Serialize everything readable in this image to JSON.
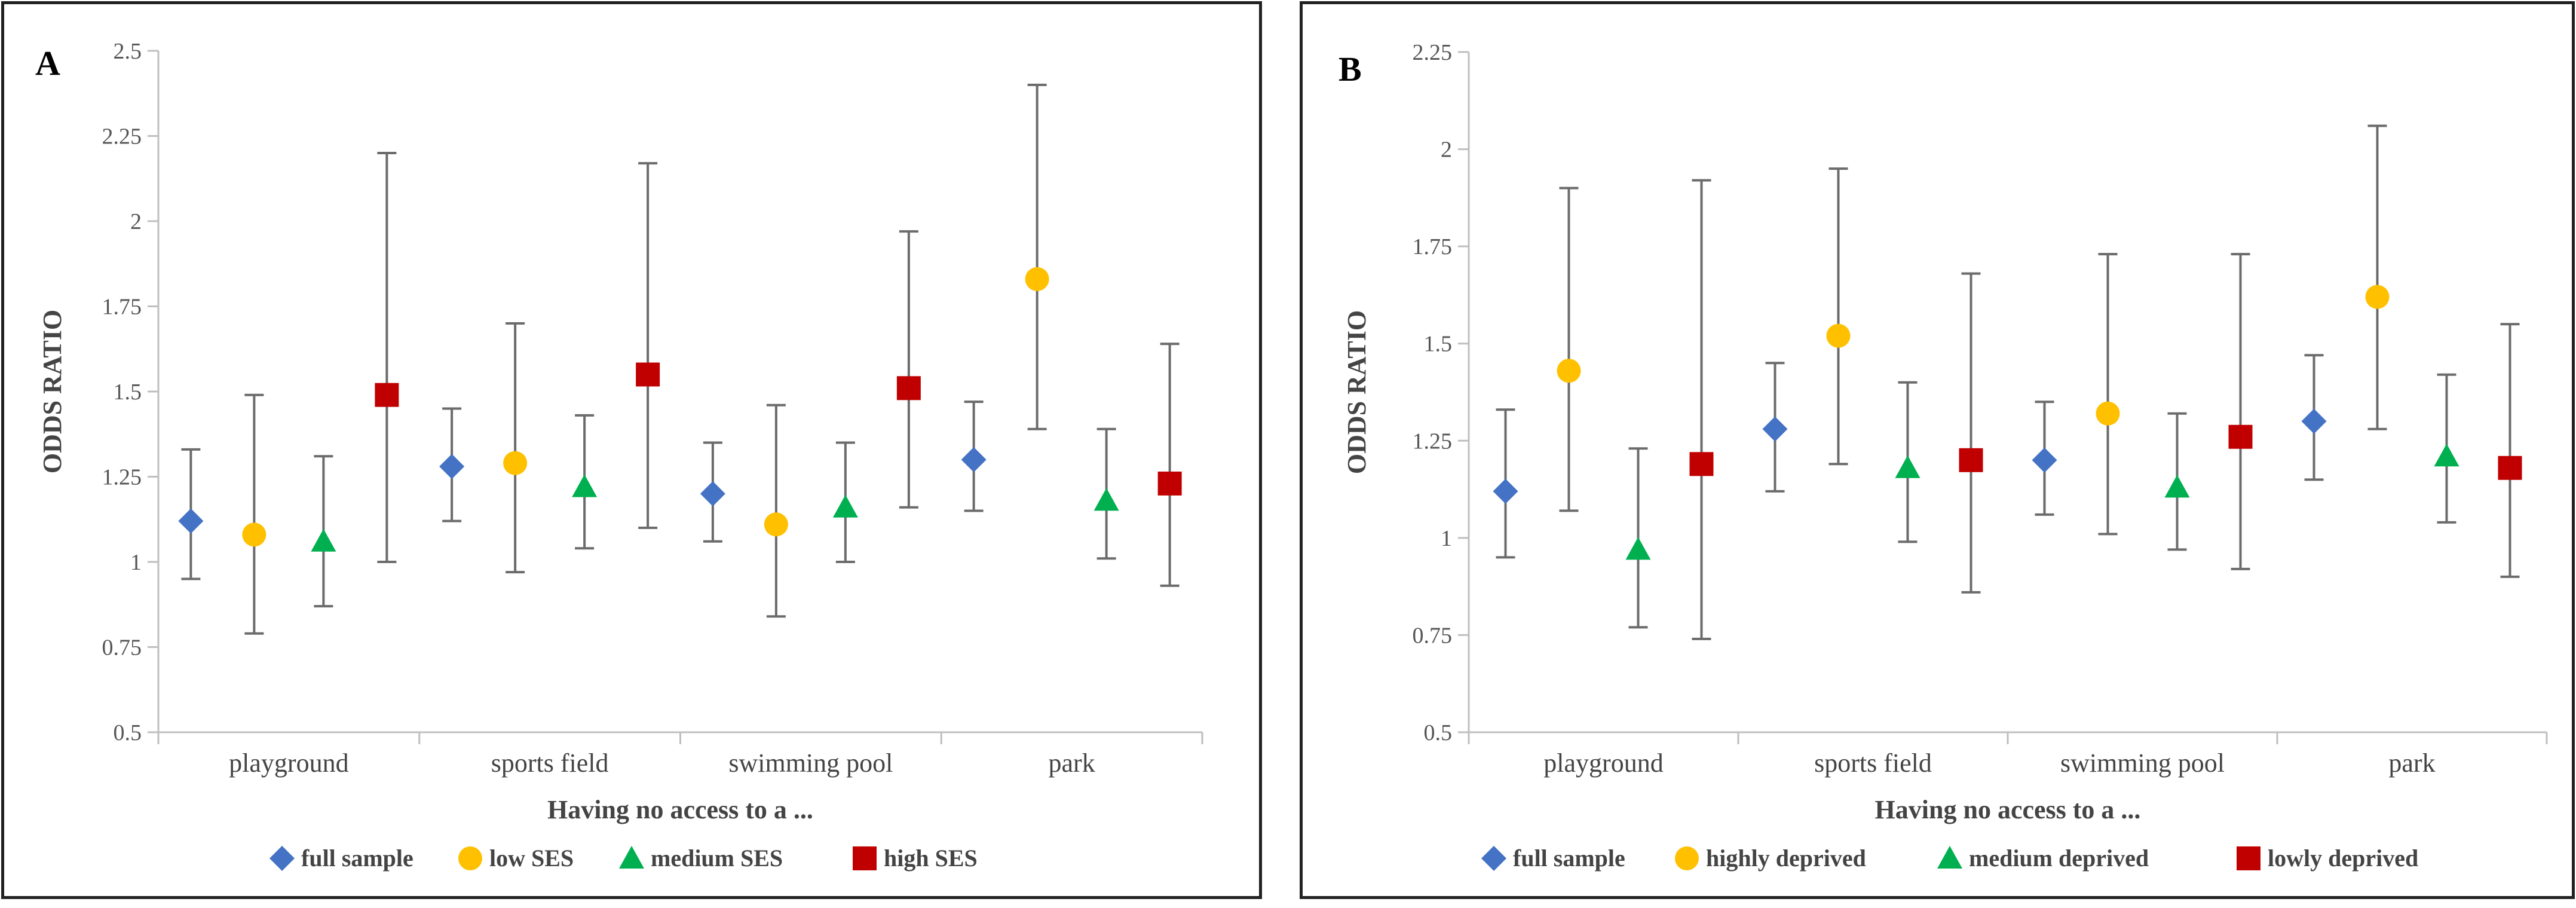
{
  "chart_data": [
    {
      "type": "scatter",
      "panel_label": "A",
      "title": "",
      "xlabel": "Having no access to a ...",
      "ylabel": "ODDS RATIO",
      "ylim": [
        0.5,
        2.5
      ],
      "yticks": [
        "0.5",
        "0.75",
        "1",
        "1.25",
        "1.5",
        "1.75",
        "2",
        "2.25",
        "2.5"
      ],
      "categories": [
        "playground",
        "sports field",
        "swimming pool",
        "park"
      ],
      "legend_position": "bottom",
      "series": [
        {
          "name": "full sample",
          "marker": "diamond",
          "color": "#4472C4",
          "values": [
            1.12,
            1.28,
            1.2,
            1.3
          ],
          "lower": [
            0.95,
            1.12,
            1.06,
            1.15
          ],
          "upper": [
            1.33,
            1.45,
            1.35,
            1.47
          ]
        },
        {
          "name": "low SES",
          "marker": "circle",
          "color": "#FFC000",
          "values": [
            1.08,
            1.29,
            1.11,
            1.83
          ],
          "lower": [
            0.79,
            0.97,
            0.84,
            1.39
          ],
          "upper": [
            1.49,
            1.7,
            1.46,
            2.4
          ]
        },
        {
          "name": "medium SES",
          "marker": "triangle",
          "color": "#00B050",
          "values": [
            1.06,
            1.22,
            1.16,
            1.18
          ],
          "lower": [
            0.87,
            1.04,
            1.0,
            1.01
          ],
          "upper": [
            1.31,
            1.43,
            1.35,
            1.39
          ]
        },
        {
          "name": "high SES",
          "marker": "square",
          "color": "#C00000",
          "values": [
            1.49,
            1.55,
            1.51,
            1.23
          ],
          "lower": [
            1.0,
            1.1,
            1.16,
            0.93
          ],
          "upper": [
            2.2,
            2.17,
            1.97,
            1.64
          ]
        }
      ]
    },
    {
      "type": "scatter",
      "panel_label": "B",
      "title": "",
      "xlabel": "Having no access to a ...",
      "ylabel": "ODDS RATIO",
      "ylim": [
        0.5,
        2.25
      ],
      "yticks": [
        "0.5",
        "0.75",
        "1",
        "1.25",
        "1.5",
        "1.75",
        "2",
        "2.25"
      ],
      "categories": [
        "playground",
        "sports field",
        "swimming pool",
        "park"
      ],
      "legend_position": "bottom",
      "series": [
        {
          "name": "full sample",
          "marker": "diamond",
          "color": "#4472C4",
          "values": [
            1.12,
            1.28,
            1.2,
            1.3
          ],
          "lower": [
            0.95,
            1.12,
            1.06,
            1.15
          ],
          "upper": [
            1.33,
            1.45,
            1.35,
            1.47
          ]
        },
        {
          "name": "highly deprived",
          "marker": "circle",
          "color": "#FFC000",
          "values": [
            1.43,
            1.52,
            1.32,
            1.62
          ],
          "lower": [
            1.07,
            1.19,
            1.01,
            1.28
          ],
          "upper": [
            1.9,
            1.95,
            1.73,
            2.06
          ]
        },
        {
          "name": "medium deprived",
          "marker": "triangle",
          "color": "#00B050",
          "values": [
            0.97,
            1.18,
            1.13,
            1.21
          ],
          "lower": [
            0.77,
            0.99,
            0.97,
            1.04
          ],
          "upper": [
            1.23,
            1.4,
            1.32,
            1.42
          ]
        },
        {
          "name": "lowly deprived",
          "marker": "square",
          "color": "#C00000",
          "values": [
            1.19,
            1.2,
            1.26,
            1.18
          ],
          "lower": [
            0.74,
            0.86,
            0.92,
            0.9
          ],
          "upper": [
            1.92,
            1.68,
            1.73,
            1.55
          ]
        }
      ]
    }
  ]
}
